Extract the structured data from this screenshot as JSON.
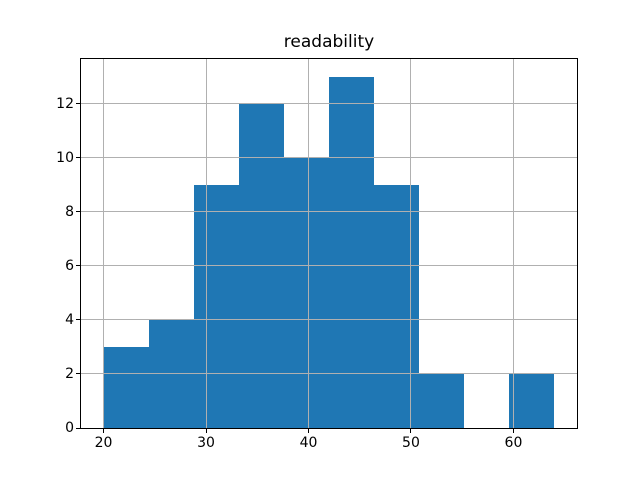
{
  "chart_data": {
    "type": "bar",
    "subtype": "histogram",
    "title": "readability",
    "bin_edges": [
      20.0,
      24.4,
      28.8,
      33.2,
      37.6,
      42.0,
      46.4,
      50.8,
      55.2,
      59.6,
      64.0
    ],
    "counts": [
      3,
      4,
      9,
      12,
      10,
      13,
      9,
      2,
      0,
      2
    ],
    "xlabel": "",
    "ylabel": "",
    "xticks": [
      20,
      30,
      40,
      50,
      60
    ],
    "yticks": [
      0,
      2,
      4,
      6,
      8,
      10,
      12
    ],
    "xlim": [
      17.8,
      66.2
    ],
    "ylim": [
      0,
      13.65
    ],
    "grid": true,
    "legend": null,
    "bar_color": "#1f77b4",
    "grid_color": "#b0b0b0",
    "axes_edge_color": "#000000",
    "background_color": "#ffffff"
  }
}
